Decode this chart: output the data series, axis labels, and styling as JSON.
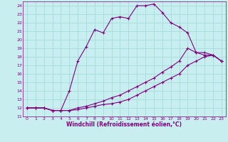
{
  "xlabel": "Windchill (Refroidissement éolien,°C)",
  "bg_color": "#c8eef0",
  "line_color": "#800080",
  "grid_color": "#aadddd",
  "spine_color": "#800080",
  "xlim": [
    -0.5,
    23.5
  ],
  "ylim": [
    11,
    24.5
  ],
  "xticks": [
    0,
    1,
    2,
    3,
    4,
    5,
    6,
    7,
    8,
    9,
    10,
    11,
    12,
    13,
    14,
    15,
    16,
    17,
    18,
    19,
    20,
    21,
    22,
    23
  ],
  "yticks": [
    11,
    12,
    13,
    14,
    15,
    16,
    17,
    18,
    19,
    20,
    21,
    22,
    23,
    24
  ],
  "line1_x": [
    0,
    1,
    2,
    3,
    4,
    5,
    6,
    7,
    8,
    9,
    10,
    11,
    12,
    13,
    14,
    15,
    16,
    17,
    18,
    19,
    20,
    21,
    22,
    23
  ],
  "line1_y": [
    12,
    12,
    12,
    11.7,
    11.7,
    14.0,
    17.5,
    19.2,
    21.2,
    20.8,
    22.5,
    22.7,
    22.5,
    24.0,
    24.0,
    24.2,
    23.2,
    22.0,
    21.5,
    20.8,
    18.5,
    18.2,
    18.2,
    17.5
  ],
  "line2_x": [
    0,
    1,
    2,
    3,
    4,
    5,
    6,
    7,
    8,
    9,
    10,
    11,
    12,
    13,
    14,
    15,
    16,
    17,
    18,
    19,
    20,
    21,
    22,
    23
  ],
  "line2_y": [
    12,
    12,
    12,
    11.7,
    11.7,
    11.7,
    12.0,
    12.2,
    12.5,
    12.8,
    13.2,
    13.5,
    14.0,
    14.5,
    15.0,
    15.5,
    16.2,
    16.8,
    17.5,
    19.0,
    18.5,
    18.5,
    18.2,
    17.5
  ],
  "line3_x": [
    0,
    1,
    2,
    3,
    4,
    5,
    6,
    7,
    8,
    9,
    10,
    11,
    12,
    13,
    14,
    15,
    16,
    17,
    18,
    19,
    20,
    21,
    22,
    23
  ],
  "line3_y": [
    12,
    12,
    12,
    11.7,
    11.7,
    11.7,
    11.8,
    12.0,
    12.2,
    12.4,
    12.5,
    12.7,
    13.0,
    13.5,
    14.0,
    14.5,
    15.0,
    15.5,
    16.0,
    17.0,
    17.5,
    18.0,
    18.2,
    17.5
  ]
}
